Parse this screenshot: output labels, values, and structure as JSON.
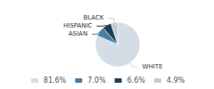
{
  "chart_data": {
    "type": "pie",
    "categories": [
      "WHITE",
      "ASIAN",
      "HISPANIC",
      "BLACK"
    ],
    "values": [
      81.6,
      7.0,
      6.6,
      4.9
    ],
    "value_labels": [
      "81.6%",
      "7.0%",
      "6.6%",
      "4.9%"
    ],
    "colors": [
      "#d4dde6",
      "#4a7fa5",
      "#1e3f5a",
      "#c0cdd8"
    ],
    "legend": "bottom"
  }
}
